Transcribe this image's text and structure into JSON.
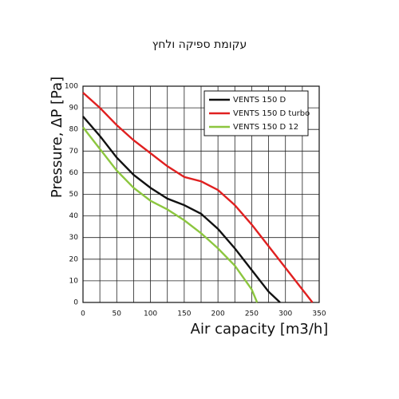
{
  "chart_data": {
    "type": "line",
    "title": "עקומת ספיקה ולחץ",
    "x_label": "Air capacity [m3/h]",
    "y_label": "Pressure, ΔP [Pa]",
    "xlim": [
      0,
      350
    ],
    "ylim": [
      0,
      100
    ],
    "xticks": [
      0,
      50,
      100,
      150,
      200,
      250,
      300,
      350
    ],
    "x_minor_grid": [
      25,
      75,
      125,
      175,
      225,
      275,
      325
    ],
    "yticks": [
      0,
      10,
      20,
      30,
      40,
      50,
      60,
      70,
      80,
      90,
      100
    ],
    "grid": true,
    "legend": "upper right",
    "series": [
      {
        "name": "VENTS 150 D",
        "color": "#111111",
        "x": [
          0,
          25,
          50,
          75,
          100,
          125,
          150,
          175,
          200,
          225,
          250,
          275,
          292
        ],
        "values": [
          86,
          77,
          67,
          59,
          53,
          48,
          45,
          41,
          34,
          25,
          15,
          5,
          0
        ]
      },
      {
        "name": "VENTS 150 D turbo",
        "color": "#e02020",
        "x": [
          0,
          25,
          50,
          75,
          100,
          125,
          150,
          175,
          200,
          225,
          250,
          275,
          300,
          325,
          340
        ],
        "values": [
          97,
          90,
          82,
          75,
          69,
          63,
          58,
          56,
          52,
          45,
          36,
          26,
          16,
          6,
          0
        ]
      },
      {
        "name": "VENTS 150 D 12",
        "color": "#8cc63f",
        "x": [
          0,
          25,
          50,
          75,
          100,
          125,
          150,
          175,
          200,
          225,
          250,
          258
        ],
        "values": [
          81,
          71,
          61,
          53,
          47,
          43,
          38,
          32,
          25,
          17,
          6,
          0
        ]
      }
    ]
  }
}
